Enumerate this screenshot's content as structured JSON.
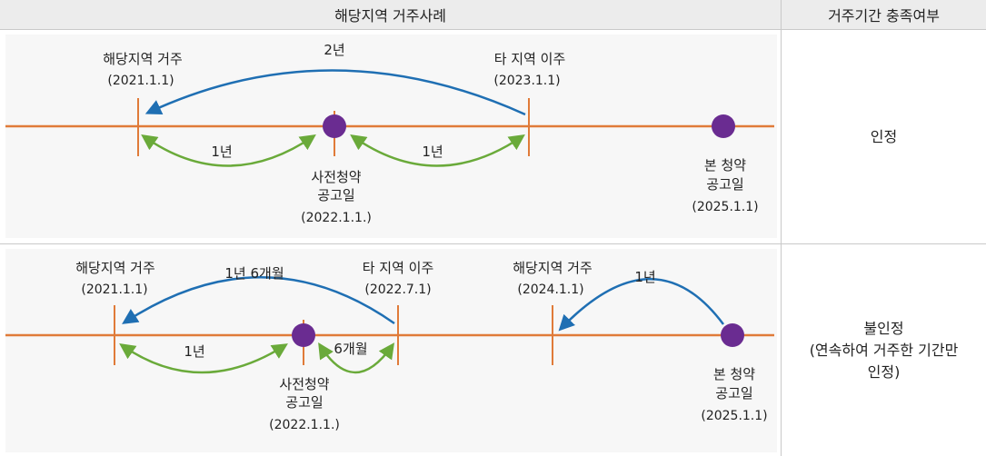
{
  "header": {
    "left": "해당지역 거주사례",
    "right": "거주기간 충족여부"
  },
  "case1": {
    "labels": {
      "reside_title": "해당지역 거주",
      "reside_date": "(2021.1.1)",
      "move_title": "타 지역 이주",
      "move_date": "(2023.1.1)",
      "pre_l1": "사전청약",
      "pre_l2": "공고일",
      "pre_date": "(2022.1.1.)",
      "main_l1": "본 청약",
      "main_l2": "공고일",
      "main_date": "(2025.1.1)",
      "span_top": "2년",
      "span_left": "1년",
      "span_right": "1년"
    },
    "result": "인정"
  },
  "case2": {
    "labels": {
      "reside_title": "해당지역 거주",
      "reside_date": "(2021.1.1)",
      "move_title": "타 지역 이주",
      "move_date": "(2022.7.1)",
      "back_title": "해당지역 거주",
      "back_date": "(2024.1.1)",
      "pre_l1": "사전청약",
      "pre_l2": "공고일",
      "pre_date": "(2022.1.1.)",
      "main_l1": "본 청약",
      "main_l2": "공고일",
      "main_date": "(2025.1.1)",
      "span_top": "1년 6개월",
      "span_left": "1년",
      "span_right": "6개월",
      "span_back": "1년"
    },
    "result_l1": "불인정",
    "result_l2": "(연속하여 거주한 기간만",
    "result_l3": "인정)"
  },
  "colors": {
    "timeline": "#e07b39",
    "long_arrow": "#1f6fb3",
    "short_arrow": "#6aaa3a",
    "dot": "#6a2c91"
  }
}
